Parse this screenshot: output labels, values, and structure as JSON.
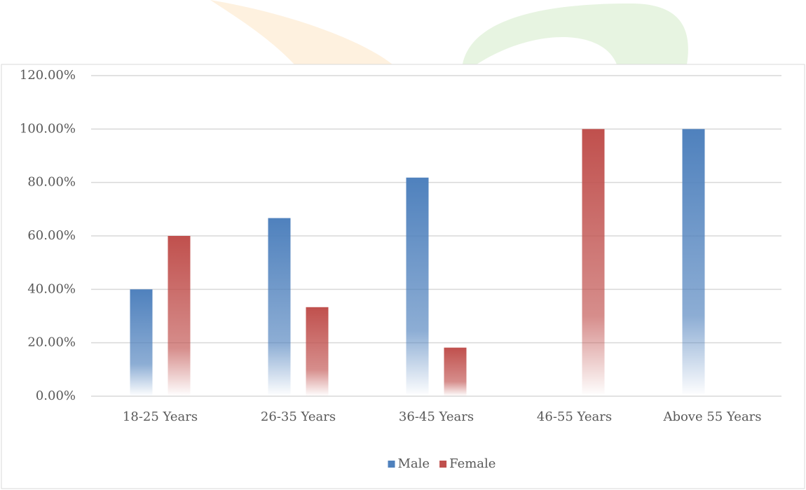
{
  "chart_data": {
    "type": "bar",
    "categories": [
      "18-25 Years",
      "26-35 Years",
      "36-45 Years",
      "46-55 Years",
      "Above 55 Years"
    ],
    "series": [
      {
        "name": "Male",
        "color": "#4f81bd",
        "values": [
          40,
          66.67,
          81.82,
          0,
          100
        ]
      },
      {
        "name": "Female",
        "color": "#c0504d",
        "values": [
          60,
          33.33,
          18.18,
          100,
          0
        ]
      }
    ],
    "ylim": [
      0,
      120
    ],
    "yticks": [
      {
        "value": 0,
        "label": "0.00%"
      },
      {
        "value": 20,
        "label": "20.00%"
      },
      {
        "value": 40,
        "label": "40.00%"
      },
      {
        "value": 60,
        "label": "60.00%"
      },
      {
        "value": 80,
        "label": "80.00%"
      },
      {
        "value": 100,
        "label": "100.00%"
      },
      {
        "value": 120,
        "label": "120.00%"
      }
    ],
    "grid": true,
    "legend": "bottom"
  }
}
